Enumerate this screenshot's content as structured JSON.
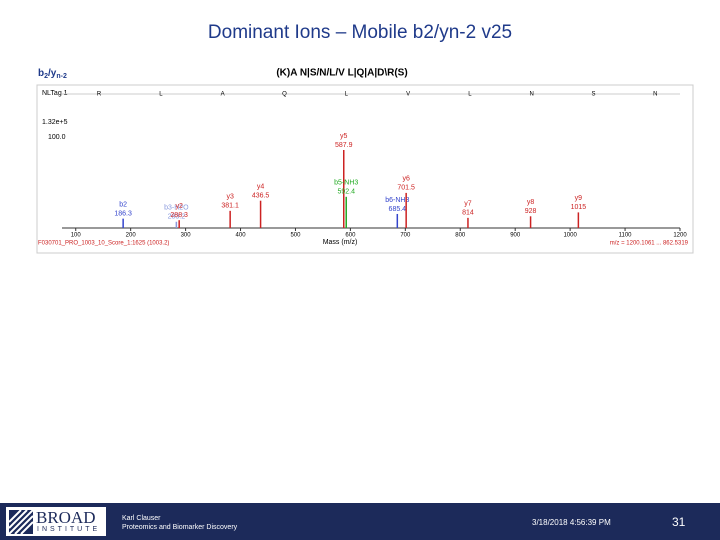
{
  "title": "Dominant Ions – Mobile b2/yn-2 v25",
  "ion_type": {
    "base": "b",
    "sub1": "2",
    "sep": "/y",
    "sub2": "n-2"
  },
  "sequence": "(K)A N|S/N/L/V L|Q|A|D\\R(S)",
  "chart_data": {
    "type": "bar",
    "residues": [
      "R",
      "L",
      "A",
      "Q",
      "L",
      "V",
      "L",
      "N",
      "S",
      "N"
    ],
    "scan_label": "NLTag 1",
    "intensity_label": "1.32e+5",
    "percent_label": "100.0",
    "x_label": "Mass (m/z)",
    "file_label": "F030701_PRO_1003_10_Score_1:1625 (1003.2)",
    "range_label": "m/z = 1200.1061 ... 862.5319",
    "xlim": [
      75,
      1200
    ],
    "xticks": [
      100,
      200,
      300,
      400,
      500,
      600,
      700,
      800,
      900,
      1000,
      1100,
      1200
    ],
    "ylim": [
      0,
      100
    ],
    "x": [
      186.3,
      283.2,
      288.3,
      381.1,
      436.5,
      587.9,
      592.4,
      685.4,
      701.5,
      814.0,
      928.0,
      1015.0
    ],
    "values": [
      12,
      8,
      10,
      22,
      35,
      100,
      40,
      18,
      45,
      13,
      15,
      20
    ],
    "peak_labels": [
      "b2",
      "b3-H2O",
      "y2",
      "y3",
      "y4",
      "y5",
      "b5-NH3",
      "b6-NH3",
      "y6",
      "y7",
      "y8",
      "y9"
    ],
    "colors": [
      "#3344cc",
      "#8899dd",
      "#cc2222",
      "#cc2222",
      "#cc2222",
      "#cc2222",
      "#22aa22",
      "#3344cc",
      "#cc2222",
      "#cc2222",
      "#cc2222",
      "#cc2222"
    ]
  },
  "footer": {
    "logo": "BROAD",
    "logo_sub": "INSTITUTE",
    "author": "Karl Clauser",
    "group": "Proteomics and Biomarker Discovery",
    "date": "3/18/2018 4:56:39 PM",
    "page": "31"
  }
}
